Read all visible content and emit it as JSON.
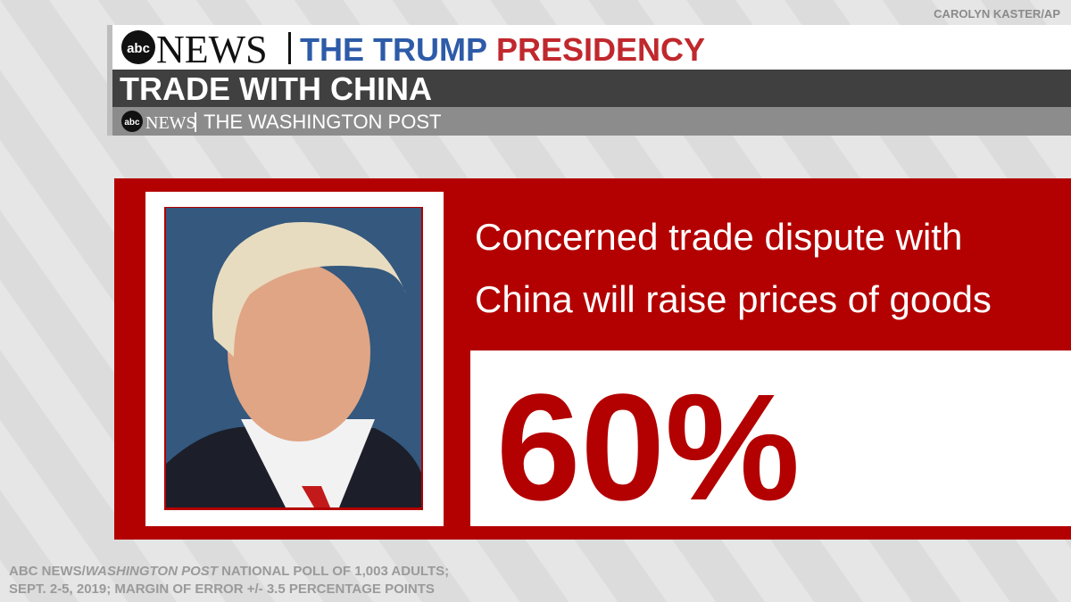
{
  "credit": "CAROLYN KASTER/AP",
  "header": {
    "logo": "abc",
    "brand": "NEWS",
    "title_part1": "THE TRUMP",
    "title_part2": "PRESIDENCY"
  },
  "topic": "TRADE WITH CHINA",
  "source_bar": {
    "logo": "abc",
    "brand": "NEWS",
    "partner": "THE WASHINGTON POST"
  },
  "statement": {
    "lines": [
      "Concerned trade dispute with",
      "China will raise prices of goods"
    ]
  },
  "stat": "60%",
  "footnote": {
    "line1_prefix": "ABC NEWS/",
    "line1_italic": "WASHINGTON POST",
    "line1_suffix": " NATIONAL POLL OF 1,003 ADULTS;",
    "line2": "SEPT. 2-5, 2019; MARGIN OF ERROR +/- 3.5 PERCENTAGE POINTS"
  }
}
